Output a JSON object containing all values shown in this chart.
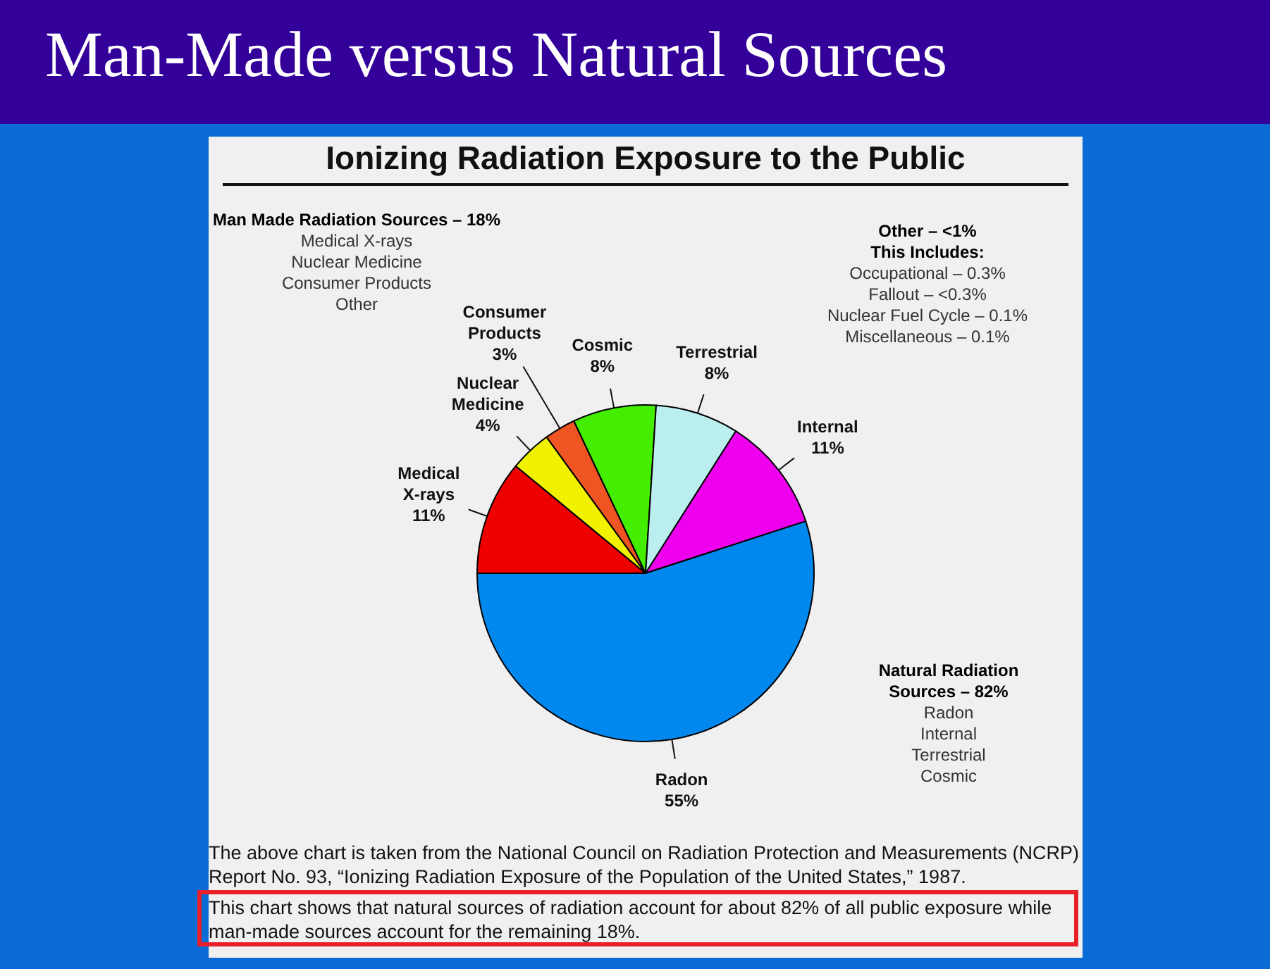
{
  "chart_data": {
    "type": "pie",
    "title": "Man-Made versus Natural Sources",
    "subtitle": "Ionizing Radiation Exposure to the Public",
    "categories": [
      "Medical X-rays",
      "Nuclear Medicine",
      "Consumer Products",
      "Cosmic",
      "Terrestrial",
      "Internal",
      "Radon"
    ],
    "values": [
      11,
      4,
      3,
      8,
      8,
      11,
      55
    ],
    "value_labels": [
      "11%",
      "4%",
      "3%",
      "8%",
      "8%",
      "11%",
      "55%"
    ],
    "colors": [
      "#ee0000",
      "#f2f200",
      "#ee5522",
      "#44ee00",
      "#bbeeee",
      "#ee00ee",
      "#0088ee"
    ],
    "legend": false,
    "annotations": [
      "Man Made Radiation Sources – 18%",
      "Medical X-rays",
      "Nuclear Medicine",
      "Consumer Products",
      "Other",
      "Other – <1%",
      "This Includes:",
      "Occupational – 0.3%",
      "Fallout – <0.3%",
      "Nuclear Fuel Cycle – 0.1%",
      "Miscellaneous – 0.1%",
      "Natural Radiation Sources – 82%",
      "Radon",
      "Internal",
      "Terrestrial",
      "Cosmic",
      "The above chart is taken from the National Council on Radiation Protection and Measurements (NCRP) Report No. 93, “Ionizing Radiation Exposure of the Population of the United States,” 1987.",
      "This chart shows that natural sources of radiation account for about 82% of all public exposure while man-made sources account for the remaining 18%."
    ]
  }
}
